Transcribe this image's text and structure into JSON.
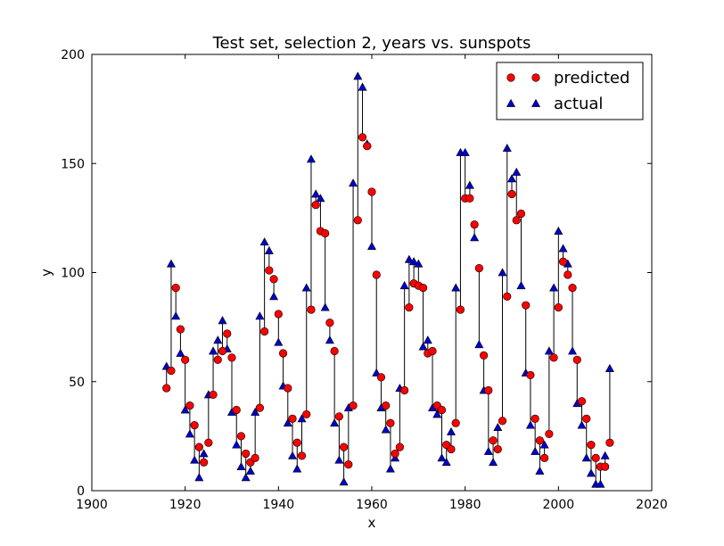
{
  "chart_data": {
    "type": "scatter",
    "title": "Test set, selection 2, years vs. sunspots",
    "xlabel": "x",
    "ylabel": "y",
    "xlim": [
      1900,
      2020
    ],
    "ylim": [
      0,
      200
    ],
    "x_ticks": [
      "1900",
      "1920",
      "1940",
      "1960",
      "1980",
      "2000",
      "2020"
    ],
    "y_ticks": [
      "0",
      "50",
      "100",
      "150",
      "200"
    ],
    "grid": false,
    "legend": "top-right",
    "colors": {
      "predicted": "#ff0000",
      "actual": "#0000cc",
      "stem": "#000000"
    },
    "x": [
      1916,
      1917,
      1918,
      1919,
      1920,
      1921,
      1922,
      1923,
      1924,
      1925,
      1926,
      1927,
      1928,
      1929,
      1930,
      1931,
      1932,
      1933,
      1934,
      1935,
      1936,
      1937,
      1938,
      1939,
      1940,
      1941,
      1942,
      1943,
      1944,
      1945,
      1946,
      1947,
      1948,
      1949,
      1950,
      1951,
      1952,
      1953,
      1954,
      1955,
      1956,
      1957,
      1958,
      1959,
      1960,
      1961,
      1962,
      1963,
      1964,
      1965,
      1966,
      1967,
      1968,
      1969,
      1970,
      1971,
      1972,
      1973,
      1974,
      1975,
      1976,
      1977,
      1978,
      1979,
      1980,
      1981,
      1982,
      1983,
      1984,
      1985,
      1986,
      1987,
      1988,
      1989,
      1990,
      1991,
      1992,
      1993,
      1994,
      1995,
      1996,
      1997,
      1998,
      1999,
      2000,
      2001,
      2002,
      2003,
      2004,
      2005,
      2006,
      2007,
      2008,
      2009,
      2010,
      2011
    ],
    "series": [
      {
        "name": "predicted",
        "marker": "circle",
        "values": [
          47,
          55,
          93,
          74,
          60,
          39,
          30,
          20,
          13,
          22,
          44,
          60,
          64,
          72,
          61,
          37,
          25,
          17,
          13,
          15,
          38,
          73,
          101,
          97,
          81,
          63,
          47,
          33,
          22,
          16,
          35,
          83,
          131,
          119,
          118,
          77,
          64,
          34,
          20,
          12,
          39,
          124,
          162,
          158,
          137,
          99,
          52,
          39,
          31,
          17,
          20,
          46,
          84,
          95,
          94,
          93,
          63,
          64,
          39,
          37,
          21,
          19,
          31,
          83,
          134,
          134,
          122,
          102,
          62,
          46,
          23,
          19,
          32,
          89,
          136,
          124,
          127,
          85,
          53,
          33,
          23,
          15,
          26,
          61,
          84,
          105,
          99,
          93,
          60,
          41,
          33,
          21,
          15,
          11,
          11,
          22
        ]
      },
      {
        "name": "actual",
        "marker": "triangle",
        "values": [
          57,
          104,
          80,
          63,
          37,
          26,
          14,
          6,
          17,
          44,
          64,
          69,
          78,
          65,
          36,
          21,
          11,
          6,
          9,
          36,
          80,
          114,
          110,
          89,
          68,
          48,
          31,
          16,
          10,
          33,
          93,
          152,
          136,
          134,
          84,
          69,
          31,
          14,
          4,
          38,
          141,
          190,
          185,
          159,
          112,
          54,
          38,
          28,
          10,
          15,
          47,
          94,
          106,
          105,
          104,
          66,
          69,
          38,
          35,
          15,
          13,
          27,
          93,
          155,
          155,
          140,
          116,
          67,
          46,
          18,
          13,
          29,
          100,
          157,
          143,
          146,
          94,
          54,
          30,
          18,
          9,
          21,
          64,
          93,
          119,
          111,
          104,
          64,
          40,
          30,
          15,
          8,
          3,
          3,
          16,
          56
        ]
      }
    ]
  }
}
